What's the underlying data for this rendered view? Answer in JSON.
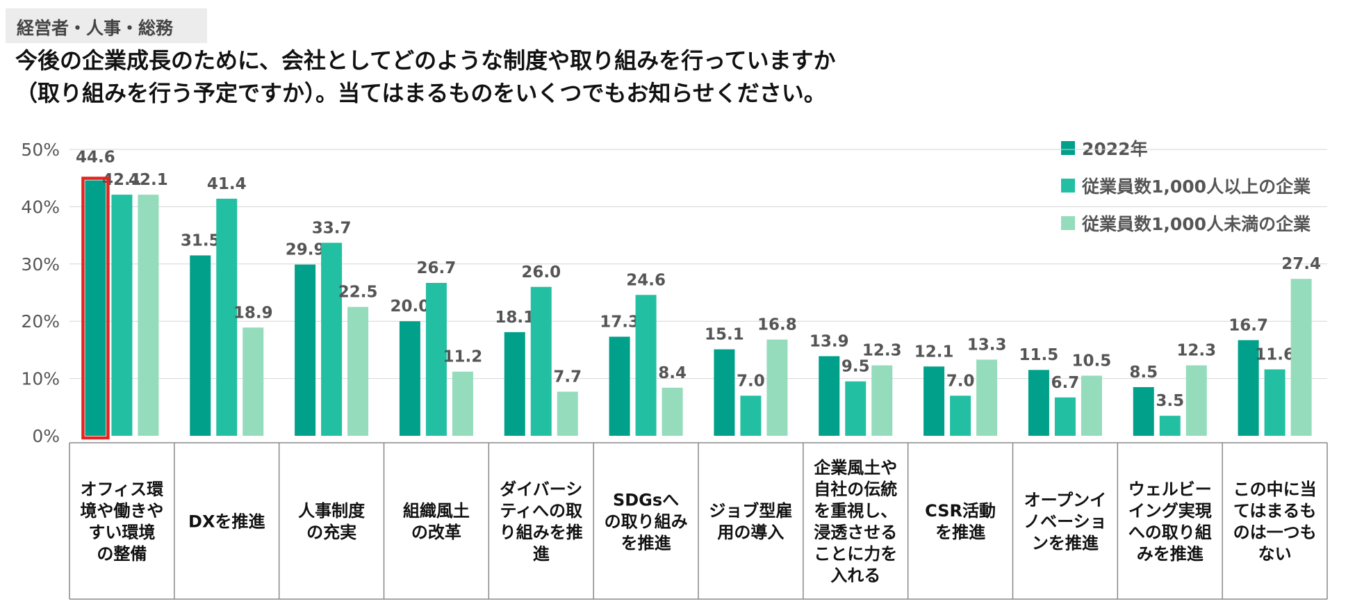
{
  "header": {
    "badge": "経営者・人事・総務",
    "title_line1": "今後の企業成長のために、会社としてどのような制度や取り組みを行っていますか",
    "title_line2": "（取り組みを行う予定ですか）。当てはまるものをいくつでもお知らせください。"
  },
  "chart_data": {
    "type": "bar",
    "title": "今後の企業成長のために、会社としてどのような制度や取り組みを行っていますか（取り組みを行う予定ですか）。当てはまるものをいくつでもお知らせください。",
    "ylim": [
      0,
      50
    ],
    "yticks": [
      "0%",
      "10%",
      "20%",
      "30%",
      "40%",
      "50%"
    ],
    "yticks_values": [
      0,
      10,
      20,
      30,
      40,
      50
    ],
    "legend_position": "top-right",
    "highlight": {
      "series": 0,
      "category": 0,
      "color": "#e52420"
    },
    "categories": [
      [
        "オフィス環",
        "境や働きや",
        "すい環境",
        "の整備"
      ],
      [
        "DXを推進"
      ],
      [
        "人事制度",
        "の充実"
      ],
      [
        "組織風土",
        "の改革"
      ],
      [
        "ダイバーシ",
        "ティへの取",
        "り組みを推",
        "進"
      ],
      [
        "SDGsへ",
        "の取り組み",
        "を推進"
      ],
      [
        "ジョブ型雇",
        "用の導入"
      ],
      [
        "企業風土や",
        "自社の伝統",
        "を重視し、",
        "浸透させる",
        "ことに力を",
        "入れる"
      ],
      [
        "CSR活動",
        "を推進"
      ],
      [
        "オープンイ",
        "ノベーショ",
        "ンを推進"
      ],
      [
        "ウェルビー",
        "イング実現",
        "への取り組",
        "みを推進"
      ],
      [
        "この中に当",
        "てはまるも",
        "のは一つも",
        "ない"
      ]
    ],
    "series": [
      {
        "name": "2022年",
        "color": "#00a08a",
        "values": [
          44.6,
          31.5,
          29.9,
          20.0,
          18.1,
          17.3,
          15.1,
          13.9,
          12.1,
          11.5,
          8.5,
          16.7
        ],
        "labels": [
          "44.6",
          "31.5",
          "29.9",
          "20.0",
          "18.1",
          "17.3",
          "15.1",
          "13.9",
          "12.1",
          "11.5",
          "8.5",
          "16.7"
        ]
      },
      {
        "name": "従業員数1,000人以上の企業",
        "color": "#22bfa2",
        "values": [
          42.1,
          41.4,
          33.7,
          26.7,
          26.0,
          24.6,
          7.0,
          9.5,
          7.0,
          6.7,
          3.5,
          11.6
        ],
        "labels": [
          "42.1",
          "41.4",
          "33.7",
          "26.7",
          "26.0",
          "24.6",
          "7.0",
          "9.5",
          "7.0",
          "6.7",
          "3.5",
          "11.6"
        ]
      },
      {
        "name": "従業員数1,000人未満の企業",
        "color": "#94dcbc",
        "values": [
          42.1,
          18.9,
          22.5,
          11.2,
          7.7,
          8.4,
          16.8,
          12.3,
          13.3,
          10.5,
          12.3,
          27.4
        ],
        "labels": [
          "42.1",
          "18.9",
          "22.5",
          "11.2",
          "7.7",
          "8.4",
          "16.8",
          "12.3",
          "13.3",
          "10.5",
          "12.3",
          "27.4"
        ]
      }
    ]
  }
}
